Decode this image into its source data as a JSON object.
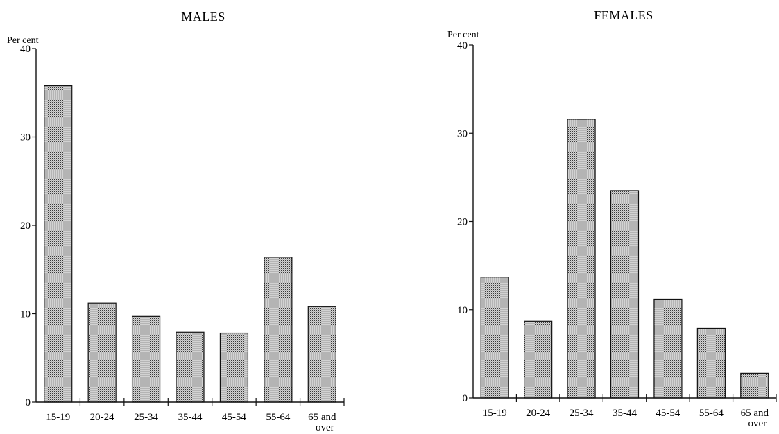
{
  "chart_data": [
    {
      "type": "bar",
      "title": "MALES",
      "ylabel": "Per cent",
      "xlabel": "",
      "ylim": [
        0,
        40
      ],
      "yticks": [
        0,
        10,
        20,
        30,
        40
      ],
      "categories": [
        "15-19",
        "20-24",
        "25-34",
        "35-44",
        "45-54",
        "55-64",
        "65 and over"
      ],
      "values": [
        35.8,
        11.2,
        9.7,
        7.9,
        7.8,
        16.4,
        10.8
      ],
      "grid": false,
      "bar_fill": "#b9b9b9",
      "bar_stroke": "#111111"
    },
    {
      "type": "bar",
      "title": "FEMALES",
      "ylabel": "Per cent",
      "xlabel": "",
      "ylim": [
        0,
        40
      ],
      "yticks": [
        0,
        10,
        20,
        30,
        40
      ],
      "categories": [
        "15-19",
        "20-24",
        "25-34",
        "35-44",
        "45-54",
        "55-64",
        "65 and over"
      ],
      "values": [
        13.7,
        8.7,
        31.6,
        23.5,
        11.2,
        7.9,
        2.8
      ],
      "grid": false,
      "bar_fill": "#b9b9b9",
      "bar_stroke": "#111111"
    }
  ]
}
